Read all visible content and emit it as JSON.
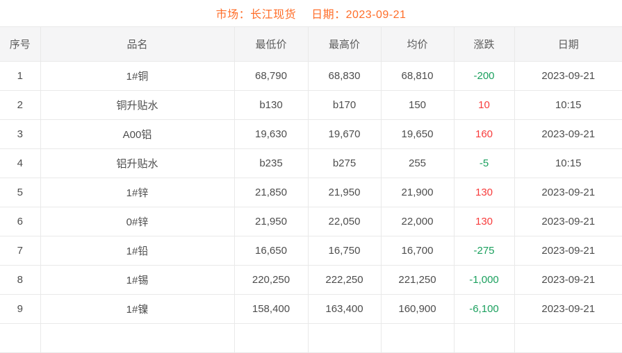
{
  "title": {
    "market": "市场：长江现货",
    "date": "日期：2023-09-21"
  },
  "colors": {
    "accent_orange": "#ff6d28",
    "up_red": "#f83c3c",
    "down_green": "#1ba05e"
  },
  "table": {
    "headers": {
      "no": "序号",
      "name": "品名",
      "low": "最低价",
      "high": "最高价",
      "avg": "均价",
      "change": "涨跌",
      "date": "日期"
    },
    "rows": [
      {
        "no": "1",
        "name": "1#铜",
        "low": "68,790",
        "high": "68,830",
        "avg": "68,810",
        "change": "-200",
        "change_color": "#1ba05e",
        "date": "2023-09-21"
      },
      {
        "no": "2",
        "name": "铜升贴水",
        "low": "b130",
        "high": "b170",
        "avg": "150",
        "change": "10",
        "change_color": "#f83c3c",
        "date": "10:15"
      },
      {
        "no": "3",
        "name": "A00铝",
        "low": "19,630",
        "high": "19,670",
        "avg": "19,650",
        "change": "160",
        "change_color": "#f83c3c",
        "date": "2023-09-21"
      },
      {
        "no": "4",
        "name": "铝升贴水",
        "low": "b235",
        "high": "b275",
        "avg": "255",
        "change": "-5",
        "change_color": "#1ba05e",
        "date": "10:15"
      },
      {
        "no": "5",
        "name": "1#锌",
        "low": "21,850",
        "high": "21,950",
        "avg": "21,900",
        "change": "130",
        "change_color": "#f83c3c",
        "date": "2023-09-21"
      },
      {
        "no": "6",
        "name": "0#锌",
        "low": "21,950",
        "high": "22,050",
        "avg": "22,000",
        "change": "130",
        "change_color": "#f83c3c",
        "date": "2023-09-21"
      },
      {
        "no": "7",
        "name": "1#铅",
        "low": "16,650",
        "high": "16,750",
        "avg": "16,700",
        "change": "-275",
        "change_color": "#1ba05e",
        "date": "2023-09-21"
      },
      {
        "no": "8",
        "name": "1#锡",
        "low": "220,250",
        "high": "222,250",
        "avg": "221,250",
        "change": "-1,000",
        "change_color": "#1ba05e",
        "date": "2023-09-21"
      },
      {
        "no": "9",
        "name": "1#镍",
        "low": "158,400",
        "high": "163,400",
        "avg": "160,900",
        "change": "-6,100",
        "change_color": "#1ba05e",
        "date": "2023-09-21"
      }
    ]
  }
}
